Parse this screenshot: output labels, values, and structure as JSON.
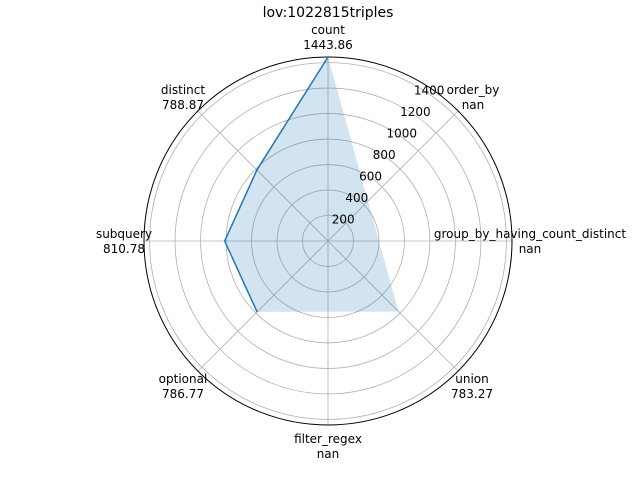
{
  "chart_data": {
    "type": "radar",
    "title": "lov:1022815triples",
    "axes": [
      {
        "name": "count",
        "value_label": "1443.86",
        "value": 1443.86
      },
      {
        "name": "order_by",
        "value_label": "nan",
        "value": null
      },
      {
        "name": "group_by_having_count_distinct",
        "value_label": "nan",
        "value": null
      },
      {
        "name": "union",
        "value_label": "783.27",
        "value": 783.27
      },
      {
        "name": "filter_regex",
        "value_label": "nan",
        "value": null
      },
      {
        "name": "optional",
        "value_label": "786.77",
        "value": 786.77
      },
      {
        "name": "subquery",
        "value_label": "810.78",
        "value": 810.78
      },
      {
        "name": "distinct",
        "value_label": "788.87",
        "value": 788.87
      }
    ],
    "radial_ticks": [
      "200",
      "400",
      "600",
      "800",
      "1000",
      "1200",
      "1400"
    ],
    "rlim": [
      0,
      1443.86
    ],
    "grid": true,
    "colors": {
      "line": "#1f77b4",
      "fill": "#1f77b4",
      "grid": "#b0b0b0",
      "spine": "#000000"
    }
  }
}
